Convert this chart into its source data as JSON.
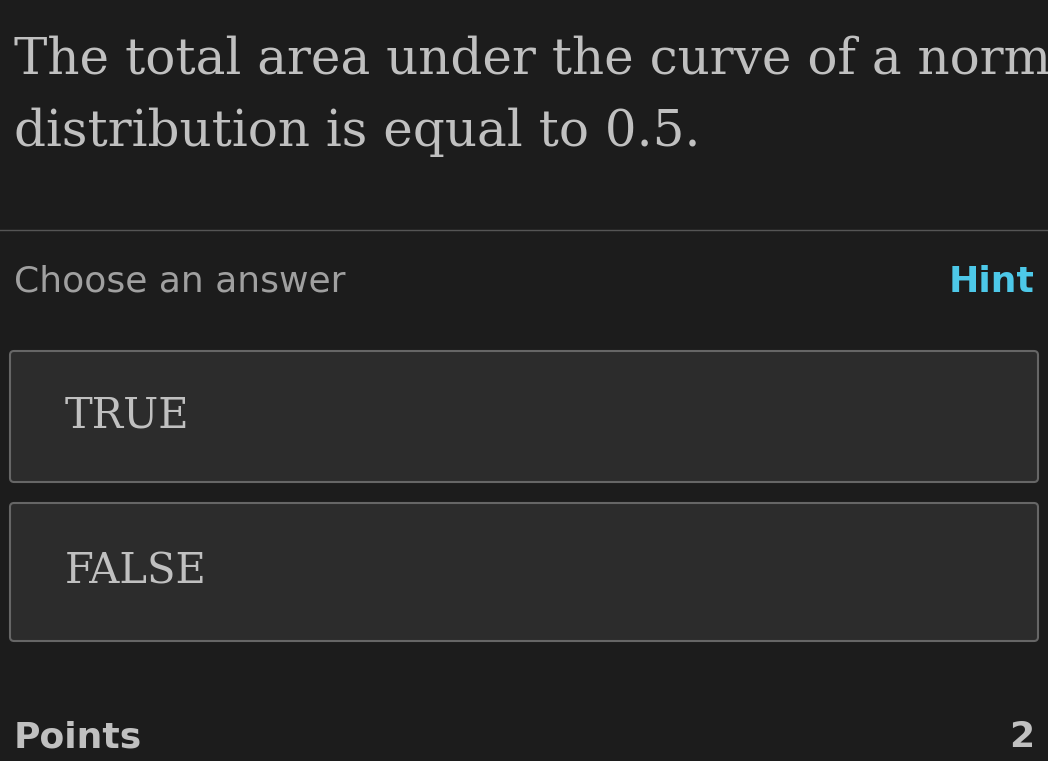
{
  "background_color": "#1c1c1c",
  "question_text_line1": "The total area under the curve of a normal",
  "question_text_line2": "distribution is equal to 0.5.",
  "question_text_color": "#c0c0c0",
  "question_font_size": 36,
  "divider_color": "#555555",
  "choose_text": "Choose an answer",
  "choose_text_color": "#a0a0a0",
  "choose_font_size": 26,
  "hint_text": "Hint",
  "hint_text_color": "#4dc8e8",
  "hint_font_size": 26,
  "answer_box_bg": "#2c2c2c",
  "answer_box_border": "#666666",
  "answer_text_color": "#c0c0c0",
  "answer_font_size": 30,
  "true_label": "TRUE",
  "false_label": "FALSE",
  "points_text": "Points",
  "points_text_color": "#c0c0c0",
  "points_font_size": 26,
  "points_value": "2",
  "points_value_color": "#c0c0c0"
}
